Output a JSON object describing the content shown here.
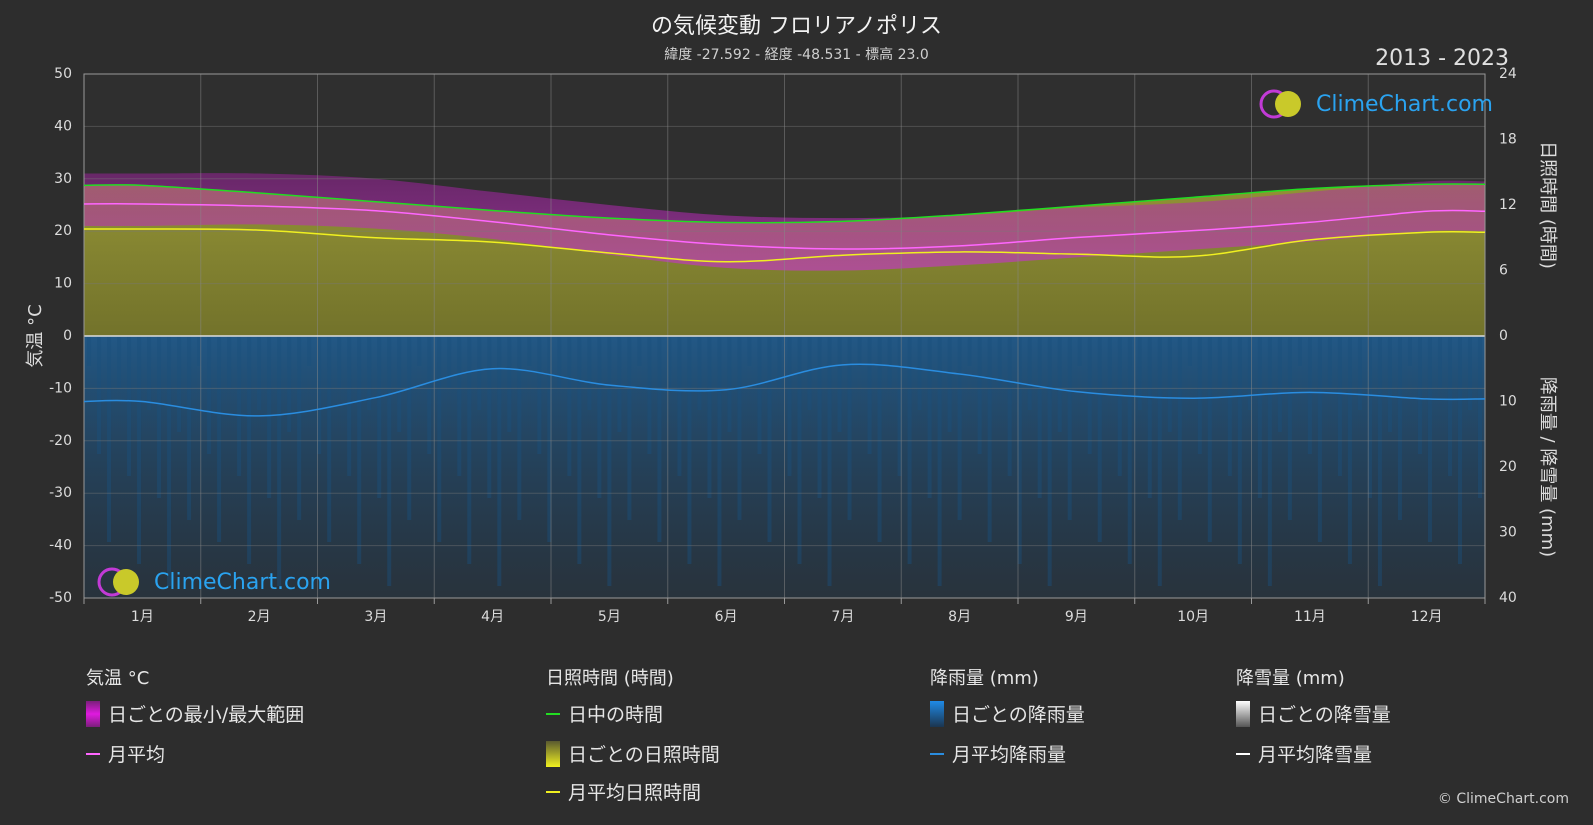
{
  "header": {
    "title": "の気候変動 フロリアノポリス",
    "subtitle": "緯度 -27.592 - 経度 -48.531 - 標高 23.0",
    "years": "2013 - 2023"
  },
  "logo": {
    "text": "ClimeChart.com"
  },
  "copyright": "© ClimeChart.com",
  "colors": {
    "background": "#2d2d2d",
    "temp_range": "#d21ad2",
    "temp_mean": "#ff66ff",
    "daylight": "#22dd22",
    "sunshine_fill": "#9a9a2e",
    "sunshine_mean": "#f0f020",
    "rain_fill": "#1c5a8c",
    "rain_mean": "#2a8de0",
    "snow_mean": "#ffffff"
  },
  "legend": {
    "temperature": {
      "head": "気温 °C",
      "items": [
        "日ごとの最小/最大範囲",
        "月平均"
      ]
    },
    "sunshine": {
      "head": "日照時間 (時間)",
      "items": [
        "日中の時間",
        "日ごとの日照時間",
        "月平均日照時間"
      ]
    },
    "rain": {
      "head": "降雨量 (mm)",
      "items": [
        "日ごとの降雨量",
        "月平均降雨量"
      ]
    },
    "snow": {
      "head": "降雪量 (mm)",
      "items": [
        "日ごとの降雪量",
        "月平均降雪量"
      ]
    }
  },
  "chart_data": {
    "type": "line",
    "categories": [
      "1月",
      "2月",
      "3月",
      "4月",
      "5月",
      "6月",
      "7月",
      "8月",
      "9月",
      "10月",
      "11月",
      "12月"
    ],
    "left_axis": {
      "label": "気温 °C",
      "ylim": [
        -50,
        50
      ],
      "ticks": [
        50,
        40,
        30,
        20,
        10,
        0,
        -10,
        -20,
        -30,
        -40,
        -50
      ]
    },
    "right_axis_top": {
      "label": "日照時間 (時間)",
      "ylim": [
        0,
        24
      ],
      "ticks": [
        24,
        18,
        12,
        6,
        0
      ]
    },
    "right_axis_bottom": {
      "label": "降雨量 / 降雪量 (mm)",
      "ylim": [
        0,
        40
      ],
      "ticks": [
        0,
        10,
        20,
        30,
        40
      ]
    },
    "grid": true,
    "series": [
      {
        "name": "月平均",
        "axis": "temperature",
        "values": [
          25.2,
          24.8,
          23.9,
          21.8,
          19.3,
          17.4,
          16.6,
          17.2,
          18.8,
          20.1,
          21.7,
          23.8
        ]
      },
      {
        "name": "日ごとの最小/最大範囲",
        "axis": "temperature",
        "min": [
          21.0,
          21.3,
          20.5,
          18.5,
          15.5,
          13.0,
          12.5,
          13.5,
          15.0,
          16.5,
          18.0,
          20.0
        ],
        "max": [
          31.0,
          31.0,
          30.0,
          27.5,
          25.0,
          23.0,
          22.5,
          23.0,
          24.5,
          25.5,
          27.5,
          29.5
        ]
      },
      {
        "name": "日中の時間",
        "axis": "sunshine",
        "values": [
          13.8,
          13.1,
          12.3,
          11.5,
          10.8,
          10.4,
          10.5,
          11.1,
          11.9,
          12.7,
          13.5,
          13.9
        ]
      },
      {
        "name": "月平均日照時間",
        "axis": "sunshine",
        "values": [
          9.8,
          9.7,
          9.0,
          8.6,
          7.6,
          6.8,
          7.4,
          7.7,
          7.5,
          7.3,
          8.8,
          9.5
        ]
      },
      {
        "name": "月平均降雨量",
        "axis": "rain",
        "values": [
          10.0,
          12.2,
          9.4,
          5.0,
          7.5,
          8.2,
          4.4,
          5.8,
          8.5,
          9.5,
          8.6,
          9.6
        ]
      },
      {
        "name": "月平均降雪量",
        "axis": "snow",
        "values": [
          0,
          0,
          0,
          0,
          0,
          0,
          0,
          0,
          0,
          0,
          0,
          0
        ]
      }
    ]
  }
}
